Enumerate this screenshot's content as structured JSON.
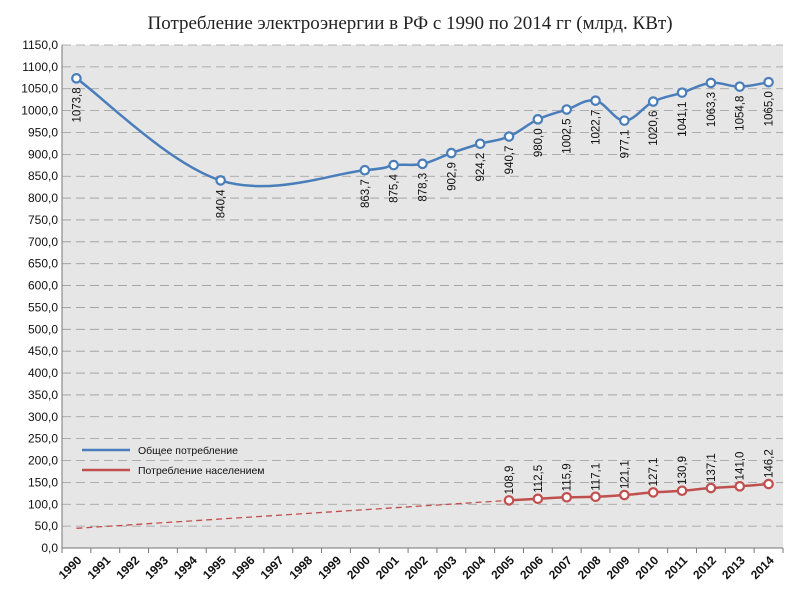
{
  "chart_data": {
    "type": "line",
    "title": "Потребление электроэнергии в РФ с 1990 по 2014 гг (млрд. КВт)",
    "xlabel": "",
    "ylabel": "",
    "ylim": [
      0,
      1150
    ],
    "y_tick_step": 50,
    "y_ticks": [
      "0,0",
      "50,0",
      "100,0",
      "150,0",
      "200,0",
      "250,0",
      "300,0",
      "350,0",
      "400,0",
      "450,0",
      "500,0",
      "550,0",
      "600,0",
      "650,0",
      "700,0",
      "750,0",
      "800,0",
      "850,0",
      "900,0",
      "950,0",
      "1000,0",
      "1050,0",
      "1100,0",
      "1150,0"
    ],
    "categories": [
      "1990",
      "1991",
      "1992",
      "1993",
      "1994",
      "1995",
      "1996",
      "1997",
      "1998",
      "1999",
      "2000",
      "2001",
      "2002",
      "2003",
      "2004",
      "2005",
      "2006",
      "2007",
      "2008",
      "2009",
      "2010",
      "2011",
      "2012",
      "2013",
      "2014"
    ],
    "grid": true,
    "legend_position": "bottom-left",
    "series": [
      {
        "name": "Общее потребление",
        "color": "#4a7ebb",
        "points": [
          {
            "x": "1990",
            "y": 1073.8,
            "label": "1073,8"
          },
          {
            "x": "1995",
            "y": 840.4,
            "label": "840,4"
          },
          {
            "x": "2000",
            "y": 863.7,
            "label": "863,7"
          },
          {
            "x": "2001",
            "y": 875.4,
            "label": "875,4"
          },
          {
            "x": "2002",
            "y": 878.3,
            "label": "878,3"
          },
          {
            "x": "2003",
            "y": 902.9,
            "label": "902,9"
          },
          {
            "x": "2004",
            "y": 924.2,
            "label": "924,2"
          },
          {
            "x": "2005",
            "y": 940.7,
            "label": "940,7"
          },
          {
            "x": "2006",
            "y": 980.0,
            "label": "980,0"
          },
          {
            "x": "2007",
            "y": 1002.5,
            "label": "1002,5"
          },
          {
            "x": "2008",
            "y": 1022.7,
            "label": "1022,7"
          },
          {
            "x": "2009",
            "y": 977.1,
            "label": "977,1"
          },
          {
            "x": "2010",
            "y": 1020.6,
            "label": "1020,6"
          },
          {
            "x": "2011",
            "y": 1041.1,
            "label": "1041,1"
          },
          {
            "x": "2012",
            "y": 1063.3,
            "label": "1063,3"
          },
          {
            "x": "2013",
            "y": 1054.8,
            "label": "1054,8"
          },
          {
            "x": "2014",
            "y": 1065.0,
            "label": "1065,0"
          }
        ]
      },
      {
        "name": "Потребление населением",
        "color": "#c0504d",
        "points": [
          {
            "x": "2005",
            "y": 108.9,
            "label": "108,9"
          },
          {
            "x": "2006",
            "y": 112.5,
            "label": "112,5"
          },
          {
            "x": "2007",
            "y": 115.9,
            "label": "115,9"
          },
          {
            "x": "2008",
            "y": 117.1,
            "label": "117,1"
          },
          {
            "x": "2009",
            "y": 121.1,
            "label": "121,1"
          },
          {
            "x": "2010",
            "y": 127.1,
            "label": "127,1"
          },
          {
            "x": "2011",
            "y": 130.9,
            "label": "130,9"
          },
          {
            "x": "2012",
            "y": 137.1,
            "label": "137,1"
          },
          {
            "x": "2013",
            "y": 141.0,
            "label": "141,0"
          },
          {
            "x": "2014",
            "y": 146.2,
            "label": "146,2"
          }
        ],
        "trend": {
          "style": "dashed",
          "from": {
            "x": "1990",
            "y": 45
          },
          "to": {
            "x": "2005",
            "y": 108.9
          }
        }
      }
    ]
  }
}
